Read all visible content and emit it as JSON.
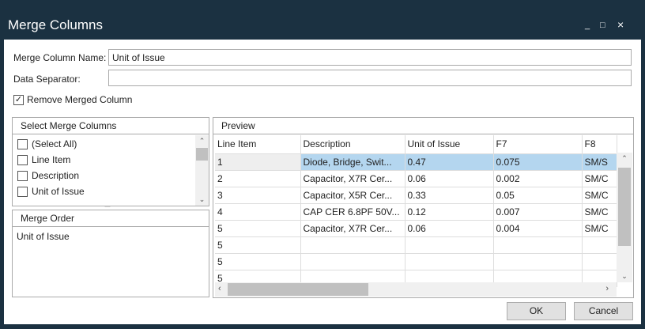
{
  "window": {
    "title": "Merge Columns",
    "minimize": "_",
    "maximize": "□",
    "close": "×"
  },
  "form": {
    "name_label": "Merge Column Name:",
    "name_value": "Unit of Issue",
    "sep_label": "Data Separator:",
    "sep_value": "",
    "remove_label": "Remove Merged Column",
    "remove_checked": true
  },
  "select_columns": {
    "title": "Select Merge Columns",
    "items": [
      {
        "label": "(Select All)",
        "checked": false
      },
      {
        "label": "Line Item",
        "checked": false
      },
      {
        "label": "Description",
        "checked": false
      },
      {
        "label": "Unit of Issue",
        "checked": false
      }
    ]
  },
  "merge_order": {
    "title": "Merge Order",
    "items": [
      "Unit of Issue"
    ]
  },
  "preview": {
    "title": "Preview",
    "columns": [
      "Line Item",
      "Description",
      "Unit of Issue",
      "F7",
      "F8"
    ],
    "rows": [
      [
        "1",
        "Diode, Bridge, Swit...",
        "0.47",
        "0.075",
        "SM/S"
      ],
      [
        "2",
        "Capacitor,  X7R Cer...",
        "0.06",
        "0.002",
        "SM/C"
      ],
      [
        "3",
        "Capacitor,  X5R Cer...",
        "0.33",
        "0.05",
        "SM/C"
      ],
      [
        "4",
        "CAP CER 6.8PF 50V...",
        "0.12",
        "0.007",
        "SM/C"
      ],
      [
        "5",
        "Capacitor,  X7R Cer...",
        "0.06",
        "0.004",
        "SM/C"
      ],
      [
        "5",
        "",
        "",
        "",
        ""
      ],
      [
        "5",
        "",
        "",
        "",
        ""
      ],
      [
        "5",
        "",
        "",
        "",
        ""
      ]
    ],
    "selected_row": 0
  },
  "buttons": {
    "ok": "OK",
    "cancel": "Cancel"
  },
  "colors": {
    "titlebar": "#1b3141",
    "selection": "#b4d6ef"
  }
}
